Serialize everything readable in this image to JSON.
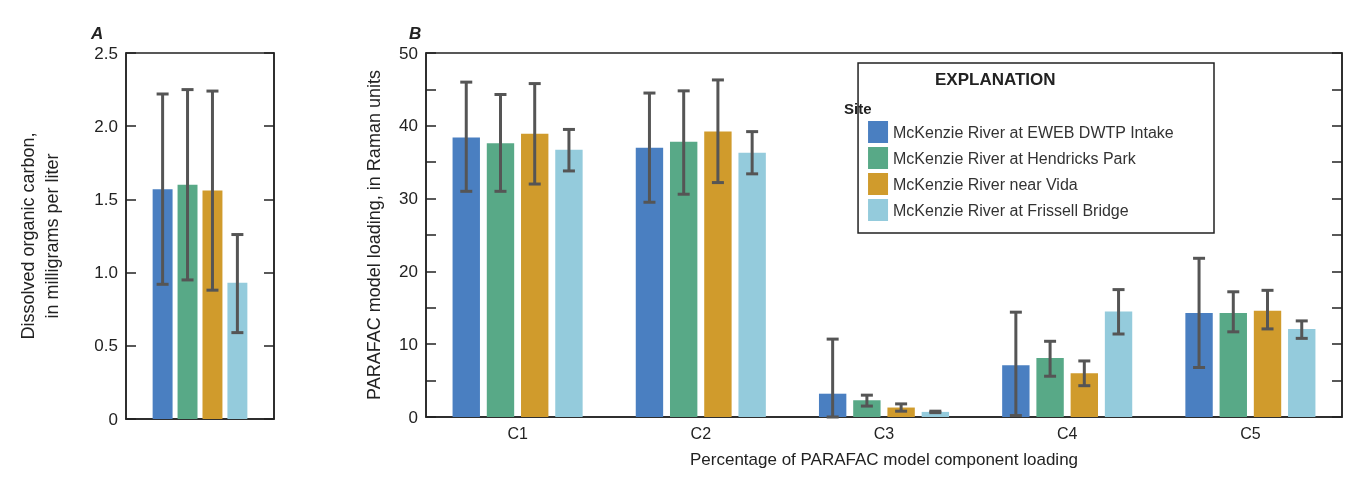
{
  "chart_data": [
    {
      "type": "bar",
      "title": "A",
      "ylabel": "Dissolved organic carbon,\nin milligrams per liter",
      "categories": [
        null
      ],
      "ylim": [
        0,
        2.5
      ],
      "yticks": [
        0,
        0.5,
        {
          "value": 1,
          "label": "1.0"
        },
        1.5,
        {
          "value": 2,
          "label": "2.0"
        },
        2.5
      ],
      "grid": false,
      "legend": false,
      "series": [
        {
          "color": "#4a7fc1",
          "values": [
            1.57
          ],
          "errors": [
            [
              0.92,
              2.22
            ]
          ]
        },
        {
          "color": "#58a987",
          "values": [
            1.6
          ],
          "errors": [
            [
              0.95,
              2.25
            ]
          ]
        },
        {
          "color": "#d09b2c",
          "values": [
            1.56
          ],
          "errors": [
            [
              0.88,
              2.24
            ]
          ]
        },
        {
          "color": "#94cbdc",
          "values": [
            0.93
          ],
          "errors": [
            [
              0.59,
              1.26
            ]
          ]
        }
      ]
    },
    {
      "type": "bar",
      "title": "B",
      "ylabel": "PARAFAC model loading, in Raman units",
      "xlabel": "Percentage of PARAFAC model component loading",
      "legend_title": "Site",
      "annotations": [
        "EXPLANATION"
      ],
      "categories": [
        "C1",
        "C2",
        "C3",
        "C4",
        "C5"
      ],
      "ylim": [
        0,
        50
      ],
      "yticks": [
        0,
        {
          "value": 5,
          "label": null
        },
        10,
        {
          "value": 15,
          "label": null
        },
        20,
        {
          "value": 25,
          "label": null
        },
        30,
        {
          "value": 35,
          "label": null
        },
        40,
        {
          "value": 45,
          "label": null
        },
        50
      ],
      "grid": false,
      "legend": "top right",
      "series": [
        {
          "name": "McKenzie River at EWEB DWTP Intake",
          "color": "#4a7fc1",
          "values": [
            38.4,
            37.0,
            3.2,
            7.1,
            14.3
          ],
          "errors": [
            [
              31,
              46
            ],
            [
              29.5,
              44.5
            ],
            [
              0,
              10.7
            ],
            [
              0.2,
              14.4
            ],
            [
              6.8,
              21.8
            ]
          ]
        },
        {
          "name": "McKenzie River at Hendricks Park",
          "color": "#58a987",
          "values": [
            37.6,
            37.8,
            2.3,
            8.1,
            14.3
          ],
          "errors": [
            [
              31,
              44.3
            ],
            [
              30.6,
              44.8
            ],
            [
              1.5,
              3
            ],
            [
              5.6,
              10.4
            ],
            [
              11.7,
              17.2
            ]
          ]
        },
        {
          "name": "McKenzie River near Vida",
          "color": "#d09b2c",
          "values": [
            38.9,
            39.2,
            1.3,
            6.0,
            14.6
          ],
          "errors": [
            [
              32,
              45.8
            ],
            [
              32.2,
              46.3
            ],
            [
              0.8,
              1.8
            ],
            [
              4.3,
              7.7
            ],
            [
              12.1,
              17.4
            ]
          ]
        },
        {
          "name": "McKenzie River at Frissell Bridge",
          "color": "#94cbdc",
          "values": [
            36.7,
            36.3,
            0.7,
            14.5,
            12.1
          ],
          "errors": [
            [
              33.8,
              39.5
            ],
            [
              33.4,
              39.2
            ],
            [
              0.6,
              0.8
            ],
            [
              11.4,
              17.5
            ],
            [
              10.8,
              13.2
            ]
          ]
        }
      ]
    }
  ]
}
